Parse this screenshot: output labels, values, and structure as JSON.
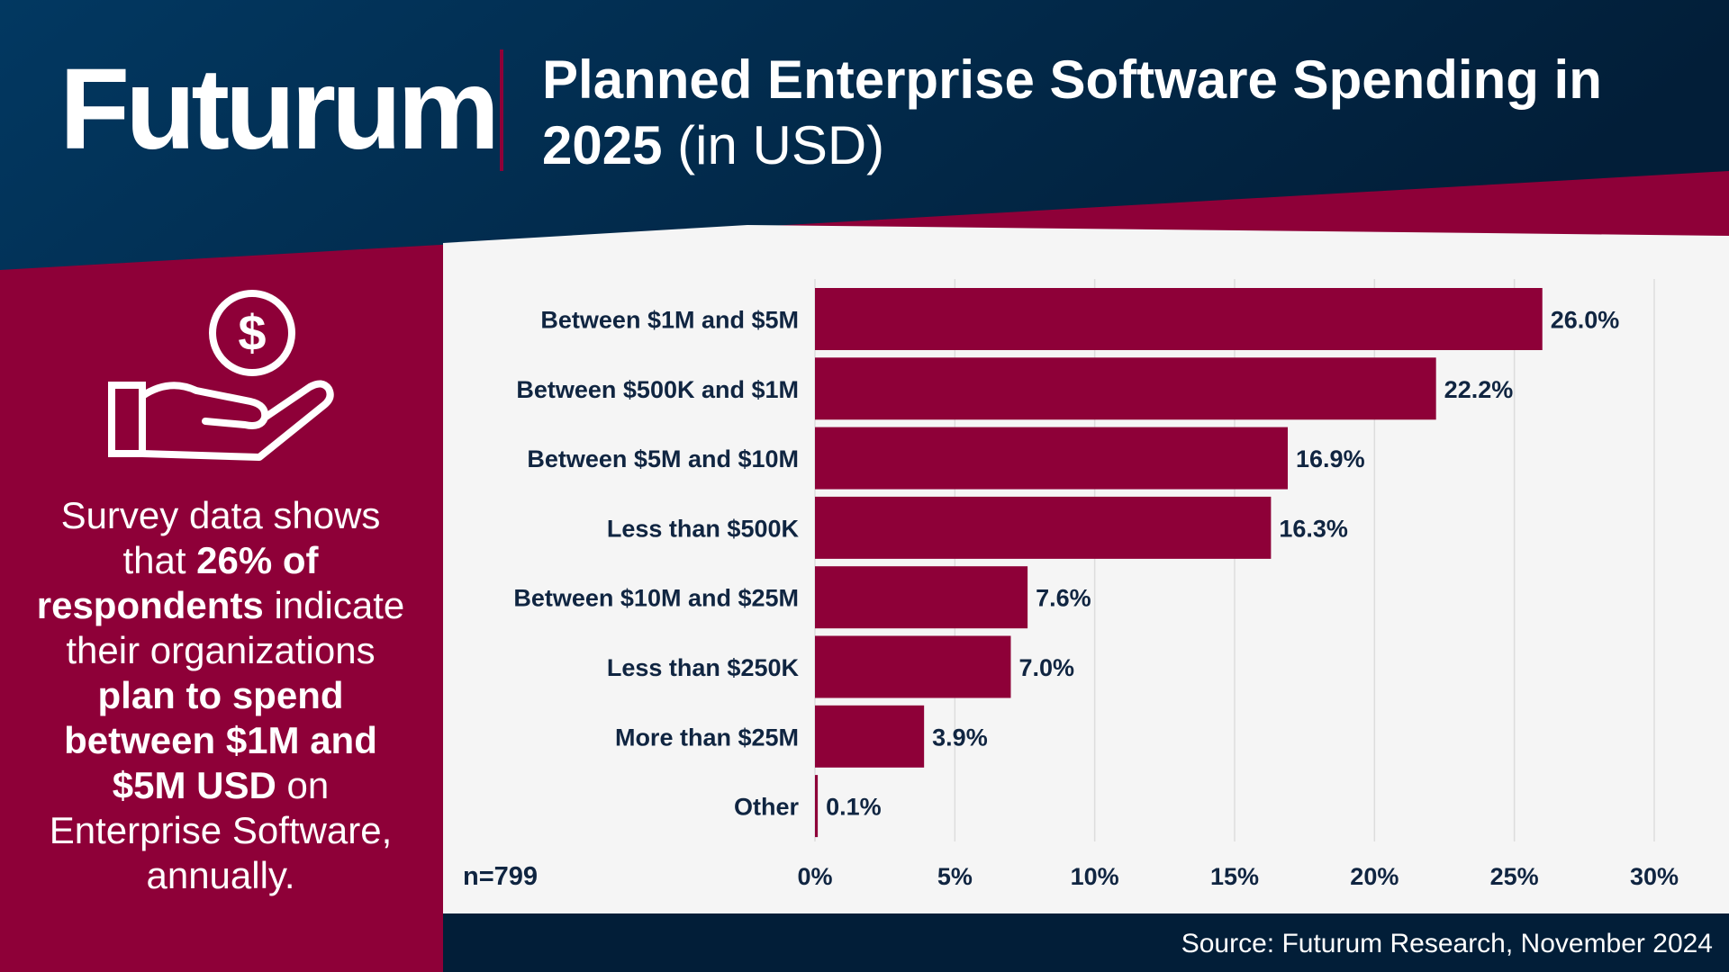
{
  "brand": {
    "logo_text": "Futurum",
    "primary_color": "#003057",
    "accent_color": "#8e0038",
    "panel_color": "#f5f5f5"
  },
  "header": {
    "title_main": "Planned Enterprise Software Spending in 2025",
    "title_unit": "(in USD)"
  },
  "sidebar": {
    "icon": "money-hand-icon",
    "text_1": "Survey data shows that ",
    "text_bold_1": "26% of respondents",
    "text_2": " indicate their organizations ",
    "text_bold_2": "plan to spend between $1M and $5M USD",
    "text_3": " on Enterprise Software, annually."
  },
  "chart_data": {
    "type": "bar",
    "orientation": "horizontal",
    "title": "Planned Enterprise Software Spending in 2025 (in USD)",
    "categories": [
      "Between $1M and $5M",
      "Between $500K and $1M",
      "Between $5M and $10M",
      "Less than $500K",
      "Between $10M and $25M",
      "Less than $250K",
      "More than $25M",
      "Other"
    ],
    "values": [
      26.0,
      22.2,
      16.9,
      16.3,
      7.6,
      7.0,
      3.9,
      0.1
    ],
    "value_labels": [
      "26.0%",
      "22.2%",
      "16.9%",
      "16.3%",
      "7.6%",
      "7.0%",
      "3.9%",
      "0.1%"
    ],
    "xlim": [
      0,
      30
    ],
    "xticks": [
      0,
      5,
      10,
      15,
      20,
      25,
      30
    ],
    "xtick_labels": [
      "0%",
      "5%",
      "10%",
      "15%",
      "20%",
      "25%",
      "30%"
    ],
    "grid": "vertical",
    "bar_color": "#8e0038",
    "sample_note": "n=799"
  },
  "footer": {
    "source": "Source: Futurum Research, November 2024"
  }
}
